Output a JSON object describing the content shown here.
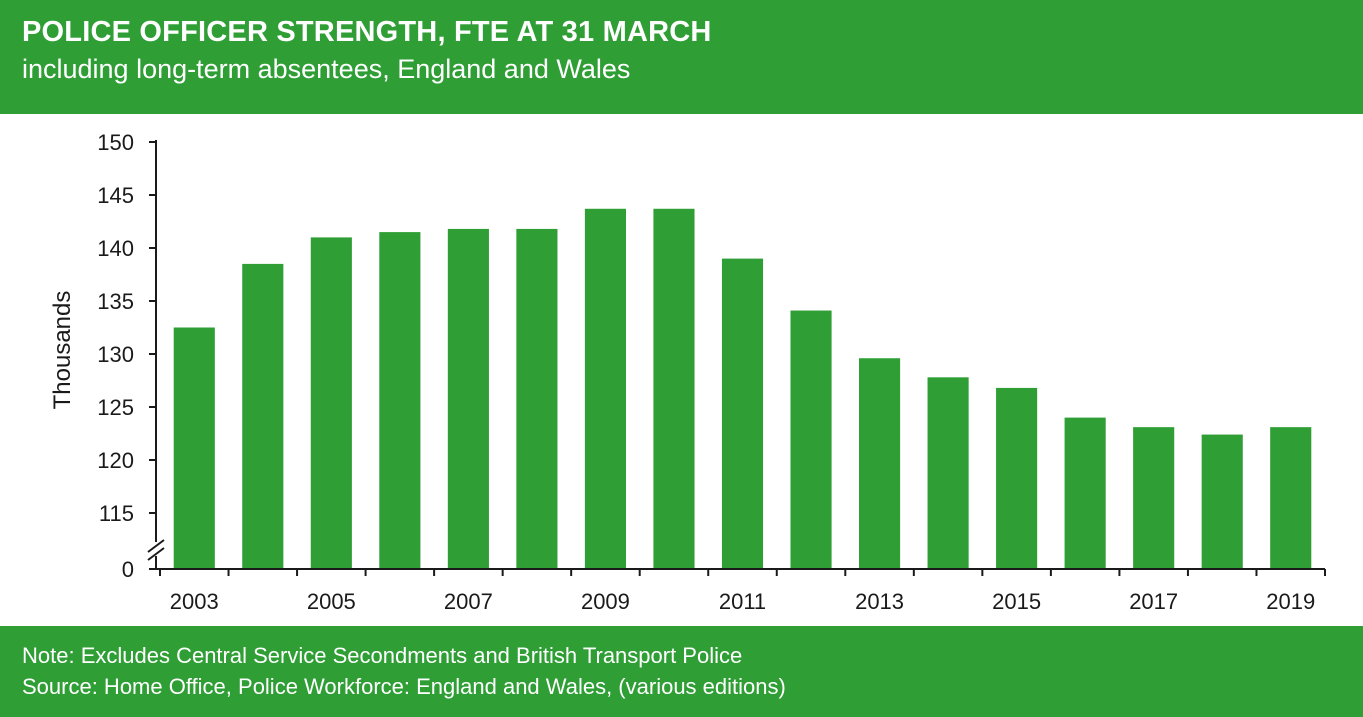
{
  "header": {
    "title": "POLICE OFFICER STRENGTH, FTE AT 31 MARCH",
    "subtitle": "including long-term absentees, England and Wales"
  },
  "footer": {
    "note": "Note: Excludes Central Service Secondments and British Transport Police",
    "source": "Source: Home Office, Police Workforce: England and Wales, (various editions)"
  },
  "colors": {
    "brand": "#2e9e35",
    "bar": "#2e9e35",
    "axis": "#1a1a1a",
    "text": "#1a1a1a"
  },
  "chart_data": {
    "type": "bar",
    "categories": [
      "2003",
      "2004",
      "2005",
      "2006",
      "2007",
      "2008",
      "2009",
      "2010",
      "2011",
      "2012",
      "2013",
      "2014",
      "2015",
      "2016",
      "2017",
      "2018",
      "2019"
    ],
    "x_tick_labels": [
      "2003",
      "2005",
      "2007",
      "2009",
      "2011",
      "2013",
      "2015",
      "2017",
      "2019"
    ],
    "values": [
      132.5,
      138.5,
      141.0,
      141.5,
      141.8,
      141.8,
      143.7,
      143.7,
      139.0,
      134.1,
      129.6,
      127.8,
      126.8,
      124.0,
      123.1,
      122.4,
      123.1
    ],
    "ylabel": "Thousands",
    "yticks": [
      0,
      115,
      120,
      125,
      130,
      135,
      140,
      145,
      150
    ],
    "ylim": [
      110,
      150
    ],
    "axis_break": true,
    "grid": false,
    "legend": "none"
  }
}
